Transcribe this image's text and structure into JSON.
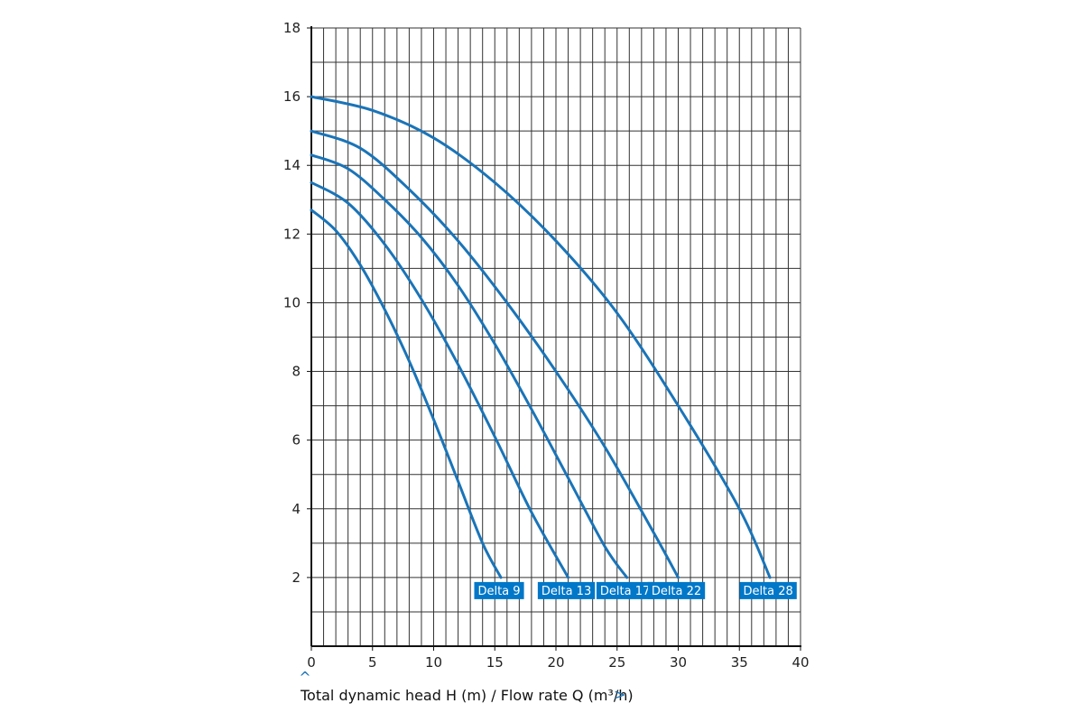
{
  "chart_data": {
    "type": "line",
    "title": "",
    "xlabel": "Total dynamic head H (m) / Flow rate Q (m³/h)",
    "xlabel_arrow_up": "^",
    "xlabel_arrow_right": ">",
    "ylabel": "",
    "xlim": [
      0,
      40
    ],
    "ylim": [
      0,
      18
    ],
    "x_ticks": [
      "0",
      "5",
      "10",
      "15",
      "20",
      "25",
      "30",
      "35",
      "40"
    ],
    "y_ticks": [
      "2",
      "4",
      "6",
      "8",
      "10",
      "12",
      "14",
      "16",
      "18"
    ],
    "grid": true,
    "line_color": "#1a74b8",
    "label_color": "#0077c8",
    "series": [
      {
        "name": "Delta 9",
        "x": [
          0,
          2,
          4,
          6,
          8,
          10,
          12,
          14,
          15.5
        ],
        "y": [
          12.7,
          12.1,
          11.1,
          9.8,
          8.3,
          6.6,
          4.8,
          3.0,
          2.0
        ]
      },
      {
        "name": "Delta 13",
        "x": [
          0,
          3,
          6,
          9,
          12,
          15,
          18,
          21
        ],
        "y": [
          13.5,
          12.9,
          11.7,
          10.1,
          8.2,
          6.1,
          3.9,
          2.0
        ]
      },
      {
        "name": "Delta 17",
        "x": [
          0,
          3,
          6,
          9,
          12,
          15,
          18,
          21,
          24,
          25.8
        ],
        "y": [
          14.3,
          13.9,
          13.0,
          11.9,
          10.5,
          8.8,
          6.9,
          4.9,
          2.9,
          2.0
        ]
      },
      {
        "name": "Delta 22",
        "x": [
          0,
          4,
          8,
          12,
          16,
          20,
          24,
          28,
          30
        ],
        "y": [
          15.0,
          14.5,
          13.3,
          11.8,
          10.0,
          8.0,
          5.8,
          3.3,
          2.0
        ]
      },
      {
        "name": "Delta 28",
        "x": [
          0,
          5,
          10,
          15,
          20,
          25,
          30,
          35,
          37.5
        ],
        "y": [
          16.0,
          15.6,
          14.8,
          13.5,
          11.8,
          9.7,
          7.0,
          4.0,
          2.0
        ]
      }
    ]
  }
}
